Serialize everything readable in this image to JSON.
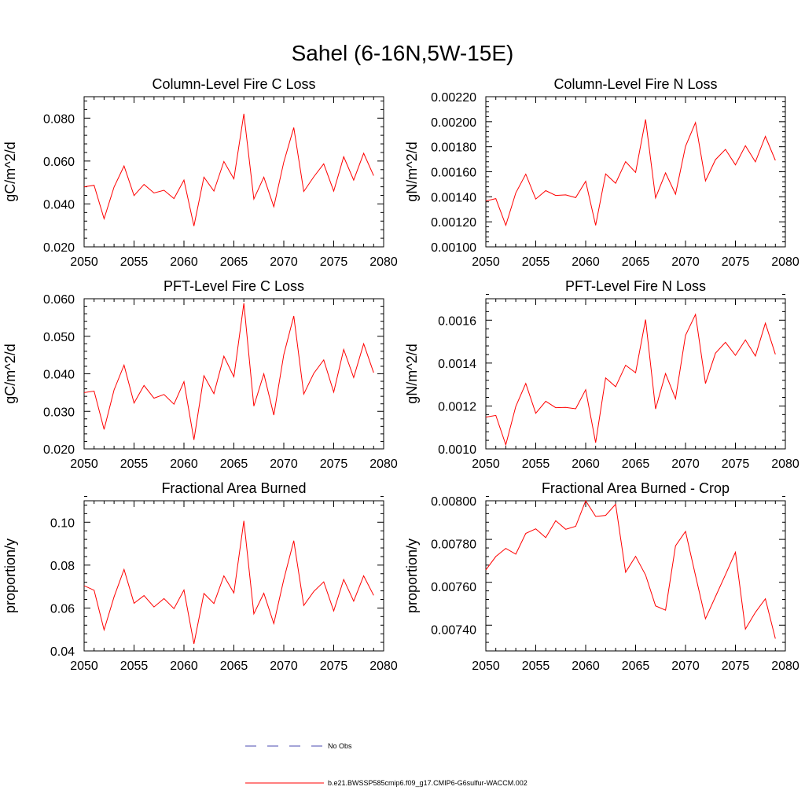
{
  "figure_title": "Sahel (6-16N,5W-15E)",
  "legend": [
    {
      "label": "No Obs",
      "color": "#4a4ab0",
      "dash": "dashed"
    },
    {
      "label": "b.e21.BWSSP585cmip6.f09_g17.CMIP6-G6sulfur-WACCM.002",
      "color": "#ff0000",
      "dash": "solid"
    }
  ],
  "chart_data": [
    {
      "type": "line",
      "title": "Column-Level Fire C Loss",
      "ylabel": "gC/m^2/d",
      "xlim": [
        2050,
        2080
      ],
      "ylim": [
        0.02,
        0.09
      ],
      "xticks": [
        2050,
        2055,
        2060,
        2065,
        2070,
        2075,
        2080
      ],
      "yticks": [
        0.02,
        0.04,
        0.06,
        0.08
      ],
      "ytick_labels": [
        "0.020",
        "0.040",
        "0.060",
        "0.080"
      ],
      "series": [
        {
          "color": "#ff0000",
          "x": [
            2050,
            2051,
            2052,
            2053,
            2054,
            2055,
            2056,
            2057,
            2058,
            2059,
            2060,
            2061,
            2062,
            2063,
            2064,
            2065,
            2066,
            2067,
            2068,
            2069,
            2070,
            2071,
            2072,
            2073,
            2074,
            2075,
            2076,
            2077,
            2078,
            2079
          ],
          "values": [
            0.048,
            0.0487,
            0.0331,
            0.0479,
            0.0577,
            0.0439,
            0.0491,
            0.0451,
            0.0464,
            0.0425,
            0.0511,
            0.0297,
            0.0525,
            0.046,
            0.0598,
            0.0517,
            0.082,
            0.0423,
            0.0525,
            0.0387,
            0.0595,
            0.0756,
            0.0458,
            0.0526,
            0.0587,
            0.046,
            0.062,
            0.0511,
            0.0636,
            0.0532
          ]
        }
      ]
    },
    {
      "type": "line",
      "title": "Column-Level Fire N Loss",
      "ylabel": "gN/m^2/d",
      "xlim": [
        2050,
        2080
      ],
      "ylim": [
        0.001,
        0.0022
      ],
      "xticks": [
        2050,
        2055,
        2060,
        2065,
        2070,
        2075,
        2080
      ],
      "yticks": [
        0.001,
        0.0012,
        0.0014,
        0.0016,
        0.0018,
        0.002,
        0.0022
      ],
      "ytick_labels": [
        "0.00100",
        "0.00120",
        "0.00140",
        "0.00160",
        "0.00180",
        "0.00200",
        "0.00220"
      ],
      "series": [
        {
          "color": "#ff0000",
          "x": [
            2050,
            2051,
            2052,
            2053,
            2054,
            2055,
            2056,
            2057,
            2058,
            2059,
            2060,
            2061,
            2062,
            2063,
            2064,
            2065,
            2066,
            2067,
            2068,
            2069,
            2070,
            2071,
            2072,
            2073,
            2074,
            2075,
            2076,
            2077,
            2078,
            2079
          ],
          "values": [
            0.001366,
            0.001386,
            0.001172,
            0.001431,
            0.001581,
            0.001382,
            0.001449,
            0.001411,
            0.001415,
            0.001393,
            0.001524,
            0.001172,
            0.001583,
            0.001508,
            0.001681,
            0.001595,
            0.002018,
            0.001391,
            0.001591,
            0.001421,
            0.001803,
            0.001993,
            0.001527,
            0.001697,
            0.001779,
            0.001655,
            0.001808,
            0.001679,
            0.001883,
            0.001691
          ]
        }
      ]
    },
    {
      "type": "line",
      "title": "PFT-Level Fire C Loss",
      "ylabel": "gC/m^2/d",
      "xlim": [
        2050,
        2080
      ],
      "ylim": [
        0.02,
        0.06
      ],
      "xticks": [
        2050,
        2055,
        2060,
        2065,
        2070,
        2075,
        2080
      ],
      "yticks": [
        0.02,
        0.03,
        0.04,
        0.05,
        0.06
      ],
      "ytick_labels": [
        "0.020",
        "0.030",
        "0.040",
        "0.050",
        "0.060"
      ],
      "series": [
        {
          "color": "#ff0000",
          "x": [
            2050,
            2051,
            2052,
            2053,
            2054,
            2055,
            2056,
            2057,
            2058,
            2059,
            2060,
            2061,
            2062,
            2063,
            2064,
            2065,
            2066,
            2067,
            2068,
            2069,
            2070,
            2071,
            2072,
            2073,
            2074,
            2075,
            2076,
            2077,
            2078,
            2079
          ],
          "values": [
            0.035,
            0.0354,
            0.0252,
            0.0357,
            0.0423,
            0.0322,
            0.0369,
            0.0335,
            0.0345,
            0.0319,
            0.0379,
            0.0224,
            0.0395,
            0.0347,
            0.0447,
            0.0392,
            0.0588,
            0.0314,
            0.04,
            0.029,
            0.0451,
            0.0554,
            0.0346,
            0.0401,
            0.0437,
            0.0351,
            0.0465,
            0.039,
            0.048,
            0.0403
          ]
        }
      ]
    },
    {
      "type": "line",
      "title": "PFT-Level Fire N Loss",
      "ylabel": "gN/m^2/d",
      "xlim": [
        2050,
        2080
      ],
      "ylim": [
        0.001,
        0.0017
      ],
      "xticks": [
        2050,
        2055,
        2060,
        2065,
        2070,
        2075,
        2080
      ],
      "yticks": [
        0.001,
        0.0012,
        0.0014,
        0.0016
      ],
      "ytick_labels": [
        "0.0010",
        "0.0012",
        "0.0014",
        "0.0016"
      ],
      "series": [
        {
          "color": "#ff0000",
          "x": [
            2050,
            2051,
            2052,
            2053,
            2054,
            2055,
            2056,
            2057,
            2058,
            2059,
            2060,
            2061,
            2062,
            2063,
            2064,
            2065,
            2066,
            2067,
            2068,
            2069,
            2070,
            2071,
            2072,
            2073,
            2074,
            2075,
            2076,
            2077,
            2078,
            2079
          ],
          "values": [
            0.001148,
            0.001156,
            0.001019,
            0.001198,
            0.001305,
            0.001166,
            0.001222,
            0.001192,
            0.001193,
            0.001187,
            0.001276,
            0.001029,
            0.001331,
            0.00129,
            0.00139,
            0.001355,
            0.001603,
            0.001186,
            0.001351,
            0.001234,
            0.001529,
            0.001627,
            0.001305,
            0.001446,
            0.001497,
            0.001436,
            0.001508,
            0.001433,
            0.001586,
            0.001441
          ]
        }
      ]
    },
    {
      "type": "line",
      "title": "Fractional Area Burned",
      "ylabel": "proportion/y",
      "xlim": [
        2050,
        2080
      ],
      "ylim": [
        0.04,
        0.11
      ],
      "xticks": [
        2050,
        2055,
        2060,
        2065,
        2070,
        2075,
        2080
      ],
      "yticks": [
        0.04,
        0.06,
        0.08,
        0.1
      ],
      "ytick_labels": [
        "0.04",
        "0.06",
        "0.08",
        "0.10"
      ],
      "series": [
        {
          "color": "#ff0000",
          "x": [
            2050,
            2051,
            2052,
            2053,
            2054,
            2055,
            2056,
            2057,
            2058,
            2059,
            2060,
            2061,
            2062,
            2063,
            2064,
            2065,
            2066,
            2067,
            2068,
            2069,
            2070,
            2071,
            2072,
            2073,
            2074,
            2075,
            2076,
            2077,
            2078,
            2079
          ],
          "values": [
            0.0704,
            0.0683,
            0.0498,
            0.0652,
            0.078,
            0.0622,
            0.0658,
            0.0605,
            0.0644,
            0.0597,
            0.0684,
            0.0433,
            0.0668,
            0.0621,
            0.075,
            0.067,
            0.1006,
            0.0573,
            0.0669,
            0.0527,
            0.0733,
            0.0914,
            0.0612,
            0.0677,
            0.0722,
            0.0586,
            0.0733,
            0.0632,
            0.075,
            0.0659
          ]
        }
      ]
    },
    {
      "type": "line",
      "title": "Fractional Area Burned - Crop",
      "ylabel": "proportion/y",
      "xlim": [
        2050,
        2080
      ],
      "ylim": [
        0.0073,
        0.008
      ],
      "xticks": [
        2050,
        2055,
        2060,
        2065,
        2070,
        2075,
        2080
      ],
      "yticks": [
        0.0074,
        0.0076,
        0.0078,
        0.008
      ],
      "ytick_labels": [
        "0.00740",
        "0.00760",
        "0.00780",
        "0.00800"
      ],
      "series": [
        {
          "color": "#ff0000",
          "x": [
            2050,
            2051,
            2052,
            2053,
            2054,
            2055,
            2056,
            2057,
            2058,
            2059,
            2060,
            2061,
            2062,
            2063,
            2064,
            2065,
            2066,
            2067,
            2068,
            2069,
            2070,
            2071,
            2072,
            2073,
            2074,
            2075,
            2076,
            2077,
            2078,
            2079
          ],
          "values": [
            0.007677,
            0.00774,
            0.007778,
            0.007751,
            0.007848,
            0.007869,
            0.007828,
            0.007907,
            0.007867,
            0.007881,
            0.008,
            0.007927,
            0.007932,
            0.007984,
            0.007667,
            0.007741,
            0.007654,
            0.00751,
            0.00749,
            0.00779,
            0.007857,
            0.007652,
            0.00745,
            0.007553,
            0.007655,
            0.00776,
            0.007402,
            0.00748,
            0.007543,
            0.007357
          ]
        }
      ]
    }
  ]
}
